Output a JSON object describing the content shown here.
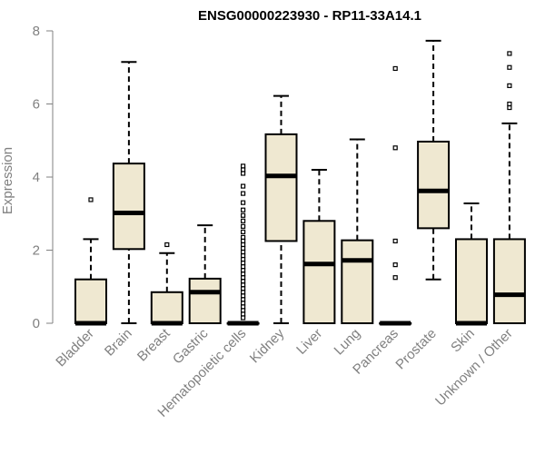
{
  "chart_data": {
    "type": "boxplot",
    "title": "ENSG00000223930 - RP11-33A14.1",
    "xlabel": "",
    "ylabel": "Expression",
    "ylim": [
      0,
      8
    ],
    "yticks": [
      0,
      2,
      4,
      6,
      8
    ],
    "box_fill": "#EFE8D1",
    "box_stroke": "#000000",
    "axis_color": "#808080",
    "categories": [
      "Bladder",
      "Brain",
      "Breast",
      "Gastric",
      "Hematopoietic cells",
      "Kidney",
      "Liver",
      "Lung",
      "Pancreas",
      "Prostate",
      "Skin",
      "Unknown / Other"
    ],
    "boxes": [
      {
        "name": "Bladder",
        "q1": 0,
        "median": 0,
        "q3": 1.2,
        "whisker_low": 0,
        "whisker_high": 2.3,
        "outliers": [
          3.38
        ]
      },
      {
        "name": "Brain",
        "q1": 2.03,
        "median": 3.02,
        "q3": 4.37,
        "whisker_low": 0,
        "whisker_high": 7.15,
        "outliers": []
      },
      {
        "name": "Breast",
        "q1": 0,
        "median": 0,
        "q3": 0.85,
        "whisker_low": 0,
        "whisker_high": 1.92,
        "outliers": [
          2.15
        ]
      },
      {
        "name": "Gastric",
        "q1": 0,
        "median": 0.85,
        "q3": 1.22,
        "whisker_low": 0,
        "whisker_high": 2.68,
        "outliers": []
      },
      {
        "name": "Hematopoietic cells",
        "q1": 0,
        "median": 0,
        "q3": 0,
        "whisker_low": 0,
        "whisker_high": 0,
        "outliers": [
          0.15,
          0.25,
          0.35,
          0.45,
          0.55,
          0.65,
          0.75,
          0.85,
          0.95,
          1.05,
          1.15,
          1.25,
          1.35,
          1.45,
          1.55,
          1.65,
          1.75,
          1.85,
          1.95,
          2.05,
          2.15,
          2.25,
          2.35,
          2.5,
          2.65,
          2.8,
          2.95,
          3.1,
          3.3,
          3.55,
          3.75,
          4.1,
          4.2,
          4.3
        ]
      },
      {
        "name": "Kidney",
        "q1": 2.25,
        "median": 4.03,
        "q3": 5.17,
        "whisker_low": 0,
        "whisker_high": 6.22,
        "outliers": []
      },
      {
        "name": "Liver",
        "q1": 0,
        "median": 1.62,
        "q3": 2.8,
        "whisker_low": 0,
        "whisker_high": 4.2,
        "outliers": []
      },
      {
        "name": "Lung",
        "q1": 0,
        "median": 1.72,
        "q3": 2.27,
        "whisker_low": 0,
        "whisker_high": 5.03,
        "outliers": []
      },
      {
        "name": "Pancreas",
        "q1": 0,
        "median": 0,
        "q3": 0,
        "whisker_low": 0,
        "whisker_high": 0,
        "outliers": [
          1.25,
          1.6,
          2.25,
          4.8,
          6.97
        ]
      },
      {
        "name": "Prostate",
        "q1": 2.6,
        "median": 3.62,
        "q3": 4.97,
        "whisker_low": 1.2,
        "whisker_high": 7.73,
        "outliers": []
      },
      {
        "name": "Skin",
        "q1": 0,
        "median": 0,
        "q3": 2.3,
        "whisker_low": 0,
        "whisker_high": 3.28,
        "outliers": []
      },
      {
        "name": "Unknown / Other",
        "q1": 0,
        "median": 0.78,
        "q3": 2.3,
        "whisker_low": 0,
        "whisker_high": 5.47,
        "outliers": [
          5.9,
          6.0,
          6.5,
          7.0,
          7.38
        ]
      }
    ]
  }
}
